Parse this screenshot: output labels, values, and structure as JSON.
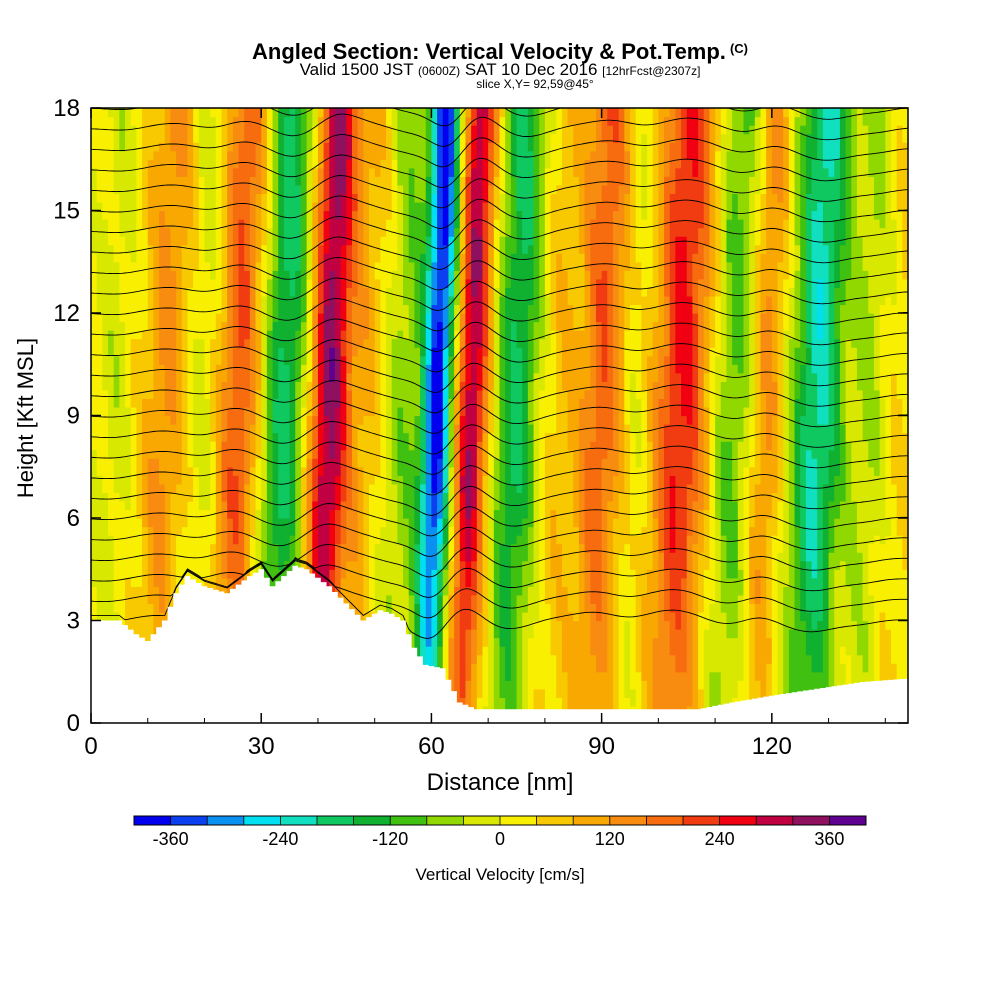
{
  "chart_data": {
    "type": "heatmap",
    "title": "Angled Section: Vertical Velocity & Pot.Temp.",
    "title_mark": "(C)",
    "subtitle_prefix": "Valid 1500 JST",
    "subtitle_zulu": "(0600Z)",
    "subtitle_date": "SAT 10 Dec 2016",
    "subtitle_forecast": "[12hrFcst@2307z]",
    "slice_label": "slice X,Y= 92,59@45°",
    "xlabel": "Distance [nm]",
    "ylabel": "Height [Kft MSL]",
    "xlim": [
      0,
      144
    ],
    "ylim": [
      0,
      18
    ],
    "x_ticks": [
      "0",
      "30",
      "60",
      "90",
      "120"
    ],
    "x_tick_values": [
      0,
      30,
      60,
      90,
      120
    ],
    "y_ticks": [
      "0",
      "3",
      "6",
      "9",
      "12",
      "15",
      "18"
    ],
    "y_tick_values": [
      0,
      3,
      6,
      9,
      12,
      15,
      18
    ],
    "colorbar": {
      "label": "Vertical Velocity [cm/s]",
      "tick_labels": [
        "-360",
        "-240",
        "-120",
        "0",
        "120",
        "240",
        "360"
      ],
      "tick_values": [
        -360,
        -240,
        -120,
        0,
        120,
        240,
        360
      ],
      "range": [
        -400,
        400
      ],
      "colors": [
        "#0000ee",
        "#0a40f0",
        "#0a90f0",
        "#00e0f0",
        "#10e0c0",
        "#10c860",
        "#10b030",
        "#40c010",
        "#90d800",
        "#d8e800",
        "#f8f000",
        "#f8c800",
        "#f8a800",
        "#f88c10",
        "#f86c10",
        "#f03c10",
        "#f00010",
        "#c00040",
        "#901060",
        "#600090"
      ]
    },
    "terrain_kft": [
      [
        0,
        3.0
      ],
      [
        5,
        3.0
      ],
      [
        8,
        2.6
      ],
      [
        10,
        2.4
      ],
      [
        13,
        3.0
      ],
      [
        15,
        3.8
      ],
      [
        17,
        4.3
      ],
      [
        20,
        4.0
      ],
      [
        24,
        3.8
      ],
      [
        28,
        4.3
      ],
      [
        30,
        4.5
      ],
      [
        32,
        4.0
      ],
      [
        34,
        4.3
      ],
      [
        36,
        4.6
      ],
      [
        38,
        4.5
      ],
      [
        42,
        4.0
      ],
      [
        45,
        3.5
      ],
      [
        48,
        3.0
      ],
      [
        51,
        3.3
      ],
      [
        53,
        3.2
      ],
      [
        55,
        3.0
      ],
      [
        57,
        2.2
      ],
      [
        59,
        1.7
      ],
      [
        62,
        1.6
      ],
      [
        65,
        0.6
      ],
      [
        68,
        0.4
      ],
      [
        90,
        0.4
      ],
      [
        100,
        0.4
      ],
      [
        107,
        0.4
      ],
      [
        113,
        0.6
      ],
      [
        120,
        0.8
      ],
      [
        128,
        1.0
      ],
      [
        136,
        1.2
      ],
      [
        144,
        1.3
      ]
    ],
    "bands": [
      {
        "x": 4,
        "w": 3,
        "v": -40
      },
      {
        "x": 13,
        "w": 4,
        "v": 110
      },
      {
        "x": 20,
        "w": 3,
        "v": -50
      },
      {
        "x": 26,
        "w": 4,
        "v": 180
      },
      {
        "x": 34,
        "w": 4,
        "v": -200
      },
      {
        "x": 42,
        "w": 3.5,
        "v": 320
      },
      {
        "x": 48,
        "w": 3,
        "v": 60
      },
      {
        "x": 55,
        "w": 3,
        "v": -80
      },
      {
        "x": 61,
        "w": 2.8,
        "v": -400
      },
      {
        "x": 67,
        "w": 3,
        "v": 300
      },
      {
        "x": 75,
        "w": 4,
        "v": -190
      },
      {
        "x": 82,
        "w": 4,
        "v": 50
      },
      {
        "x": 90,
        "w": 4,
        "v": 170
      },
      {
        "x": 96,
        "w": 3,
        "v": -40
      },
      {
        "x": 104,
        "w": 5,
        "v": 230
      },
      {
        "x": 113,
        "w": 4,
        "v": -120
      },
      {
        "x": 119,
        "w": 3,
        "v": 120
      },
      {
        "x": 128,
        "w": 4.5,
        "v": -240
      },
      {
        "x": 137,
        "w": 3,
        "v": -60
      },
      {
        "x": 143,
        "w": 3,
        "v": 20
      }
    ],
    "contour_levels_kft": [
      3.0,
      3.6,
      4.2,
      4.8,
      5.4,
      6.0,
      6.6,
      7.2,
      7.8,
      8.4,
      9.0,
      9.6,
      10.2,
      10.8,
      11.4,
      12.0,
      12.6,
      13.2,
      13.8,
      14.4,
      15.0,
      15.6,
      16.2,
      16.8,
      17.4,
      18.0
    ]
  }
}
